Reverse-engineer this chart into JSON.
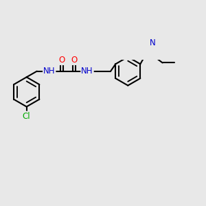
{
  "background_color": "#e8e8e8",
  "bond_color": "#000000",
  "bond_width": 1.5,
  "atom_colors": {
    "N": "#0000cc",
    "O": "#ff0000",
    "Cl": "#00aa00",
    "H": "#555555"
  },
  "font_size_atom": 8.5
}
